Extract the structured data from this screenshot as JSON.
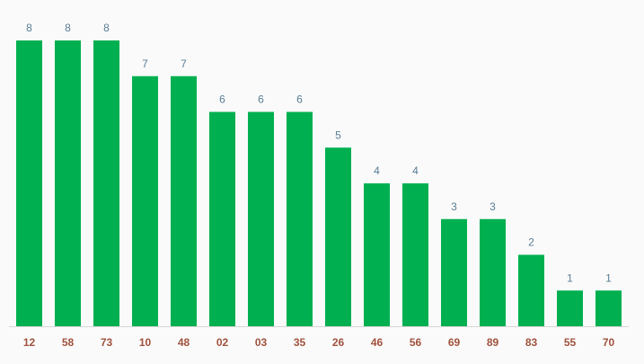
{
  "chart_data": {
    "type": "bar",
    "categories": [
      "12",
      "58",
      "73",
      "10",
      "48",
      "02",
      "03",
      "35",
      "26",
      "46",
      "56",
      "69",
      "89",
      "83",
      "55",
      "70"
    ],
    "values": [
      8,
      8,
      8,
      7,
      7,
      6,
      6,
      6,
      5,
      4,
      4,
      3,
      3,
      2,
      1,
      1
    ],
    "color": "#00b050"
  }
}
